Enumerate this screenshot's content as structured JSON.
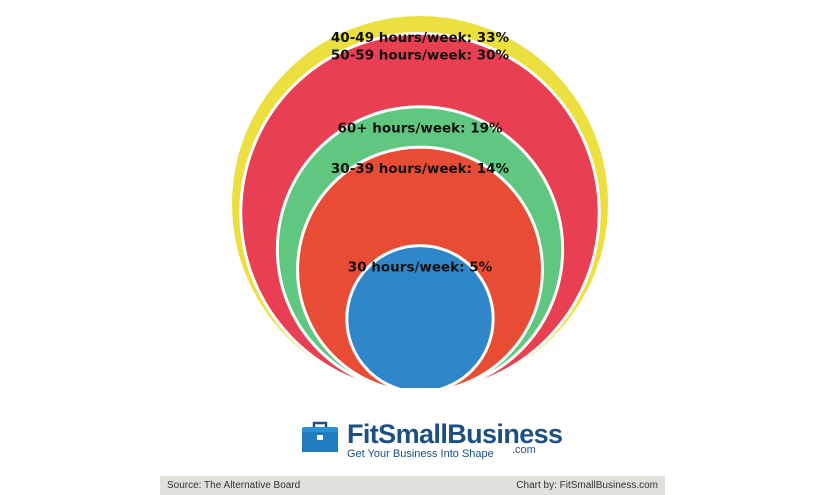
{
  "chart_data": {
    "type": "bubble",
    "title": "",
    "xlabel": "",
    "ylabel": "",
    "legend": "none",
    "grid": false,
    "series": [
      {
        "label": "40-49 hours/week: 33%",
        "category": "40-49 hours/week",
        "value": 33,
        "color": "#ece040"
      },
      {
        "label": "50-59 hours/week: 30%",
        "category": "50-59 hours/week",
        "value": 30,
        "color": "#e84052"
      },
      {
        "label": "60+ hours/week: 19%",
        "category": "60+ hours/week",
        "value": 19,
        "color": "#5fc780"
      },
      {
        "label": "30-39 hours/week: 14%",
        "category": "30-39 hours/week",
        "value": 14,
        "color": "#e94c35"
      },
      {
        "label": "30 hours/week: 5%",
        "category": "30 hours/week",
        "value": 5,
        "color": "#2f86c9"
      }
    ]
  },
  "logo": {
    "wordmark": "FitSmallBusiness",
    "dotcom": ".com",
    "tagline": "Get Your Business Into Shape"
  },
  "footer": {
    "source": "Source: The Alternative Board",
    "credit": "Chart by: FitSmallBusiness.com"
  },
  "colors": {
    "footer_bg": "#e2e0da",
    "brand_blue": "#1d4f82",
    "icon_blue": "#2a8fd6"
  }
}
